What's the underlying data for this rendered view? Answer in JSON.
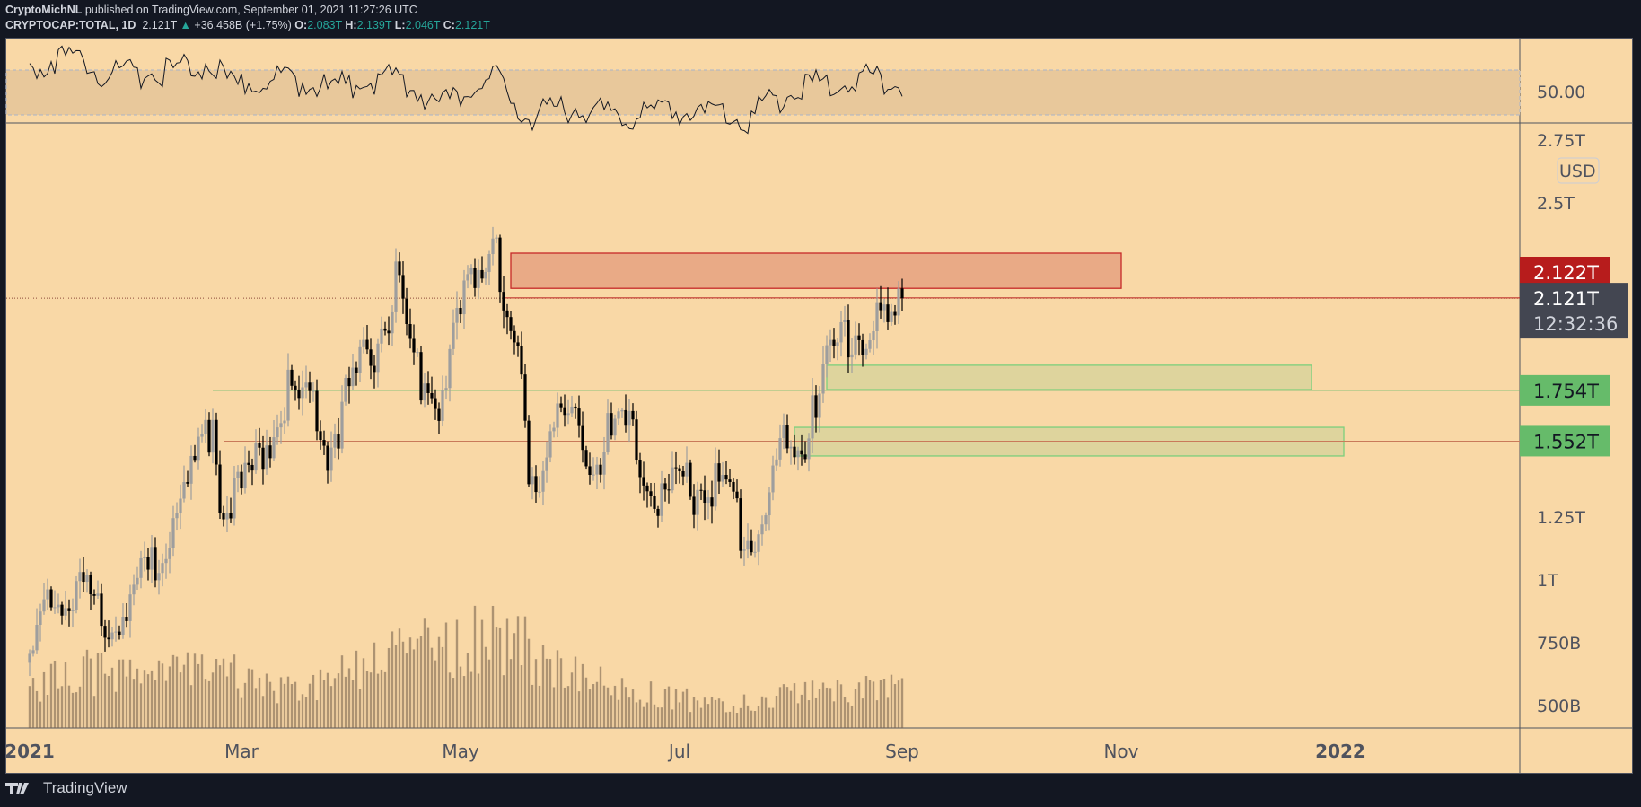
{
  "header": {
    "publisher_line": {
      "author": "CryptoMichNL",
      "text": "published on TradingView.com, September 01, 2021 11:27:26 UTC"
    },
    "symbol": "CRYPTOCAP:TOTAL, 1D",
    "last": "2.121T",
    "change": "+36.458B (+1.75%)",
    "open_label": "O:",
    "open": "2.083T",
    "high_label": "H:",
    "high": "2.139T",
    "low_label": "L:",
    "low": "2.046T",
    "close_label": "C:",
    "close": "2.121T"
  },
  "footer": {
    "brand": "TradingView"
  },
  "colors": {
    "background": "#f9d8a6",
    "up_candle": "#9e9e9e",
    "down_candle": "#000000",
    "resistance_zone": "#e9aa86",
    "support_zone": "#d9d39b",
    "red_label": "#b71c1c",
    "green_label": "#66bb6a",
    "price_label": "#434651"
  },
  "chart_data": {
    "type": "candlestick",
    "price_scale": "linear",
    "currency": "USD",
    "y_ticks": [
      "2.75T",
      "2.5T",
      "1.25T",
      "1T",
      "750B",
      "500B"
    ],
    "y_tick_values": [
      2.75,
      2.5,
      1.25,
      1.0,
      0.75,
      0.5
    ],
    "x_ticks": [
      {
        "label": "2021",
        "date": "2021-01-01",
        "bold": true
      },
      {
        "label": "Mar",
        "date": "2021-03-01"
      },
      {
        "label": "May",
        "date": "2021-05-01"
      },
      {
        "label": "Jul",
        "date": "2021-07-01"
      },
      {
        "label": "Sep",
        "date": "2021-09-01"
      },
      {
        "label": "Nov",
        "date": "2021-11-01"
      },
      {
        "label": "2022",
        "date": "2022-01-01",
        "bold": true
      }
    ],
    "close_keypoints_T": [
      [
        "2021-01-01",
        0.7
      ],
      [
        "2021-01-04",
        0.85
      ],
      [
        "2021-01-08",
        1.05
      ],
      [
        "2021-01-11",
        0.95
      ],
      [
        "2021-01-14",
        1.05
      ],
      [
        "2021-01-21",
        0.93
      ],
      [
        "2021-01-28",
        0.95
      ],
      [
        "2021-02-02",
        1.05
      ],
      [
        "2021-02-06",
        1.15
      ],
      [
        "2021-02-10",
        1.35
      ],
      [
        "2021-02-16",
        1.48
      ],
      [
        "2021-02-21",
        1.72
      ],
      [
        "2021-02-23",
        1.43
      ],
      [
        "2021-02-28",
        1.38
      ],
      [
        "2021-03-05",
        1.5
      ],
      [
        "2021-03-13",
        1.81
      ],
      [
        "2021-03-20",
        1.76
      ],
      [
        "2021-03-25",
        1.58
      ],
      [
        "2021-04-01",
        1.81
      ],
      [
        "2021-04-05",
        1.93
      ],
      [
        "2021-04-13",
        2.22
      ],
      [
        "2021-04-18",
        1.9
      ],
      [
        "2021-04-25",
        1.78
      ],
      [
        "2021-05-01",
        2.1
      ],
      [
        "2021-05-05",
        2.32
      ],
      [
        "2021-05-11",
        2.45
      ],
      [
        "2021-05-13",
        2.1
      ],
      [
        "2021-05-17",
        1.95
      ],
      [
        "2021-05-19",
        1.6
      ],
      [
        "2021-05-22",
        1.45
      ],
      [
        "2021-05-27",
        1.72
      ],
      [
        "2021-06-01",
        1.64
      ],
      [
        "2021-06-08",
        1.56
      ],
      [
        "2021-06-15",
        1.68
      ],
      [
        "2021-06-21",
        1.5
      ],
      [
        "2021-06-25",
        1.35
      ],
      [
        "2021-07-01",
        1.41
      ],
      [
        "2021-07-07",
        1.45
      ],
      [
        "2021-07-15",
        1.36
      ],
      [
        "2021-07-20",
        1.22
      ],
      [
        "2021-07-25",
        1.36
      ],
      [
        "2021-07-30",
        1.56
      ],
      [
        "2021-08-05",
        1.6
      ],
      [
        "2021-08-07",
        1.8
      ],
      [
        "2021-08-14",
        1.97
      ],
      [
        "2021-08-20",
        2.05
      ],
      [
        "2021-08-23",
        2.12
      ],
      [
        "2021-08-27",
        2.05
      ],
      [
        "2021-09-01",
        2.121
      ]
    ],
    "volume_keypoints": [
      [
        "2021-01-01",
        40
      ],
      [
        "2021-01-11",
        70
      ],
      [
        "2021-02-01",
        55
      ],
      [
        "2021-02-22",
        70
      ],
      [
        "2021-03-15",
        45
      ],
      [
        "2021-04-18",
        90
      ],
      [
        "2021-05-12",
        110
      ],
      [
        "2021-05-20",
        90
      ],
      [
        "2021-06-15",
        45
      ],
      [
        "2021-07-15",
        25
      ],
      [
        "2021-08-01",
        40
      ],
      [
        "2021-08-20",
        45
      ],
      [
        "2021-09-01",
        45
      ]
    ],
    "rsi": {
      "label": "50.00",
      "band": [
        30,
        70
      ],
      "keypoints": [
        [
          "2021-01-01",
          80
        ],
        [
          "2021-01-12",
          90
        ],
        [
          "2021-01-22",
          72
        ],
        [
          "2021-02-10",
          76
        ],
        [
          "2021-02-21",
          84
        ],
        [
          "2021-02-25",
          62
        ],
        [
          "2021-03-13",
          70
        ],
        [
          "2021-03-25",
          60
        ],
        [
          "2021-04-13",
          72
        ],
        [
          "2021-04-25",
          45
        ],
        [
          "2021-05-11",
          68
        ],
        [
          "2021-05-20",
          35
        ],
        [
          "2021-06-01",
          44
        ],
        [
          "2021-06-21",
          36
        ],
        [
          "2021-07-01",
          40
        ],
        [
          "2021-07-20",
          34
        ],
        [
          "2021-08-01",
          58
        ],
        [
          "2021-08-14",
          68
        ],
        [
          "2021-08-22",
          70
        ],
        [
          "2021-09-01",
          65
        ]
      ]
    },
    "zones": [
      {
        "kind": "resistance",
        "top": 2.3,
        "bottom": 2.16,
        "from": "2021-05-15",
        "to": "2021-11-01"
      },
      {
        "kind": "support",
        "top": 1.854,
        "bottom": 1.757,
        "from": "2021-08-11",
        "to": "2021-12-24"
      },
      {
        "kind": "support",
        "top": 1.607,
        "bottom": 1.493,
        "from": "2021-08-02",
        "to": "2022-01-02"
      }
    ],
    "levels": [
      {
        "value": 2.122,
        "label": "2.122T",
        "from": "2021-05-13",
        "color": "#b71c1c"
      },
      {
        "value": 1.754,
        "label": "1.754T",
        "from": "2021-02-21",
        "color": "#66bb6a"
      },
      {
        "value": 1.552,
        "label": "1.552T",
        "from": "2021-02-24",
        "color": "#c97a5a"
      }
    ],
    "last_price": {
      "value": 2.121,
      "label": "2.121T",
      "countdown": "12:32:36"
    }
  }
}
